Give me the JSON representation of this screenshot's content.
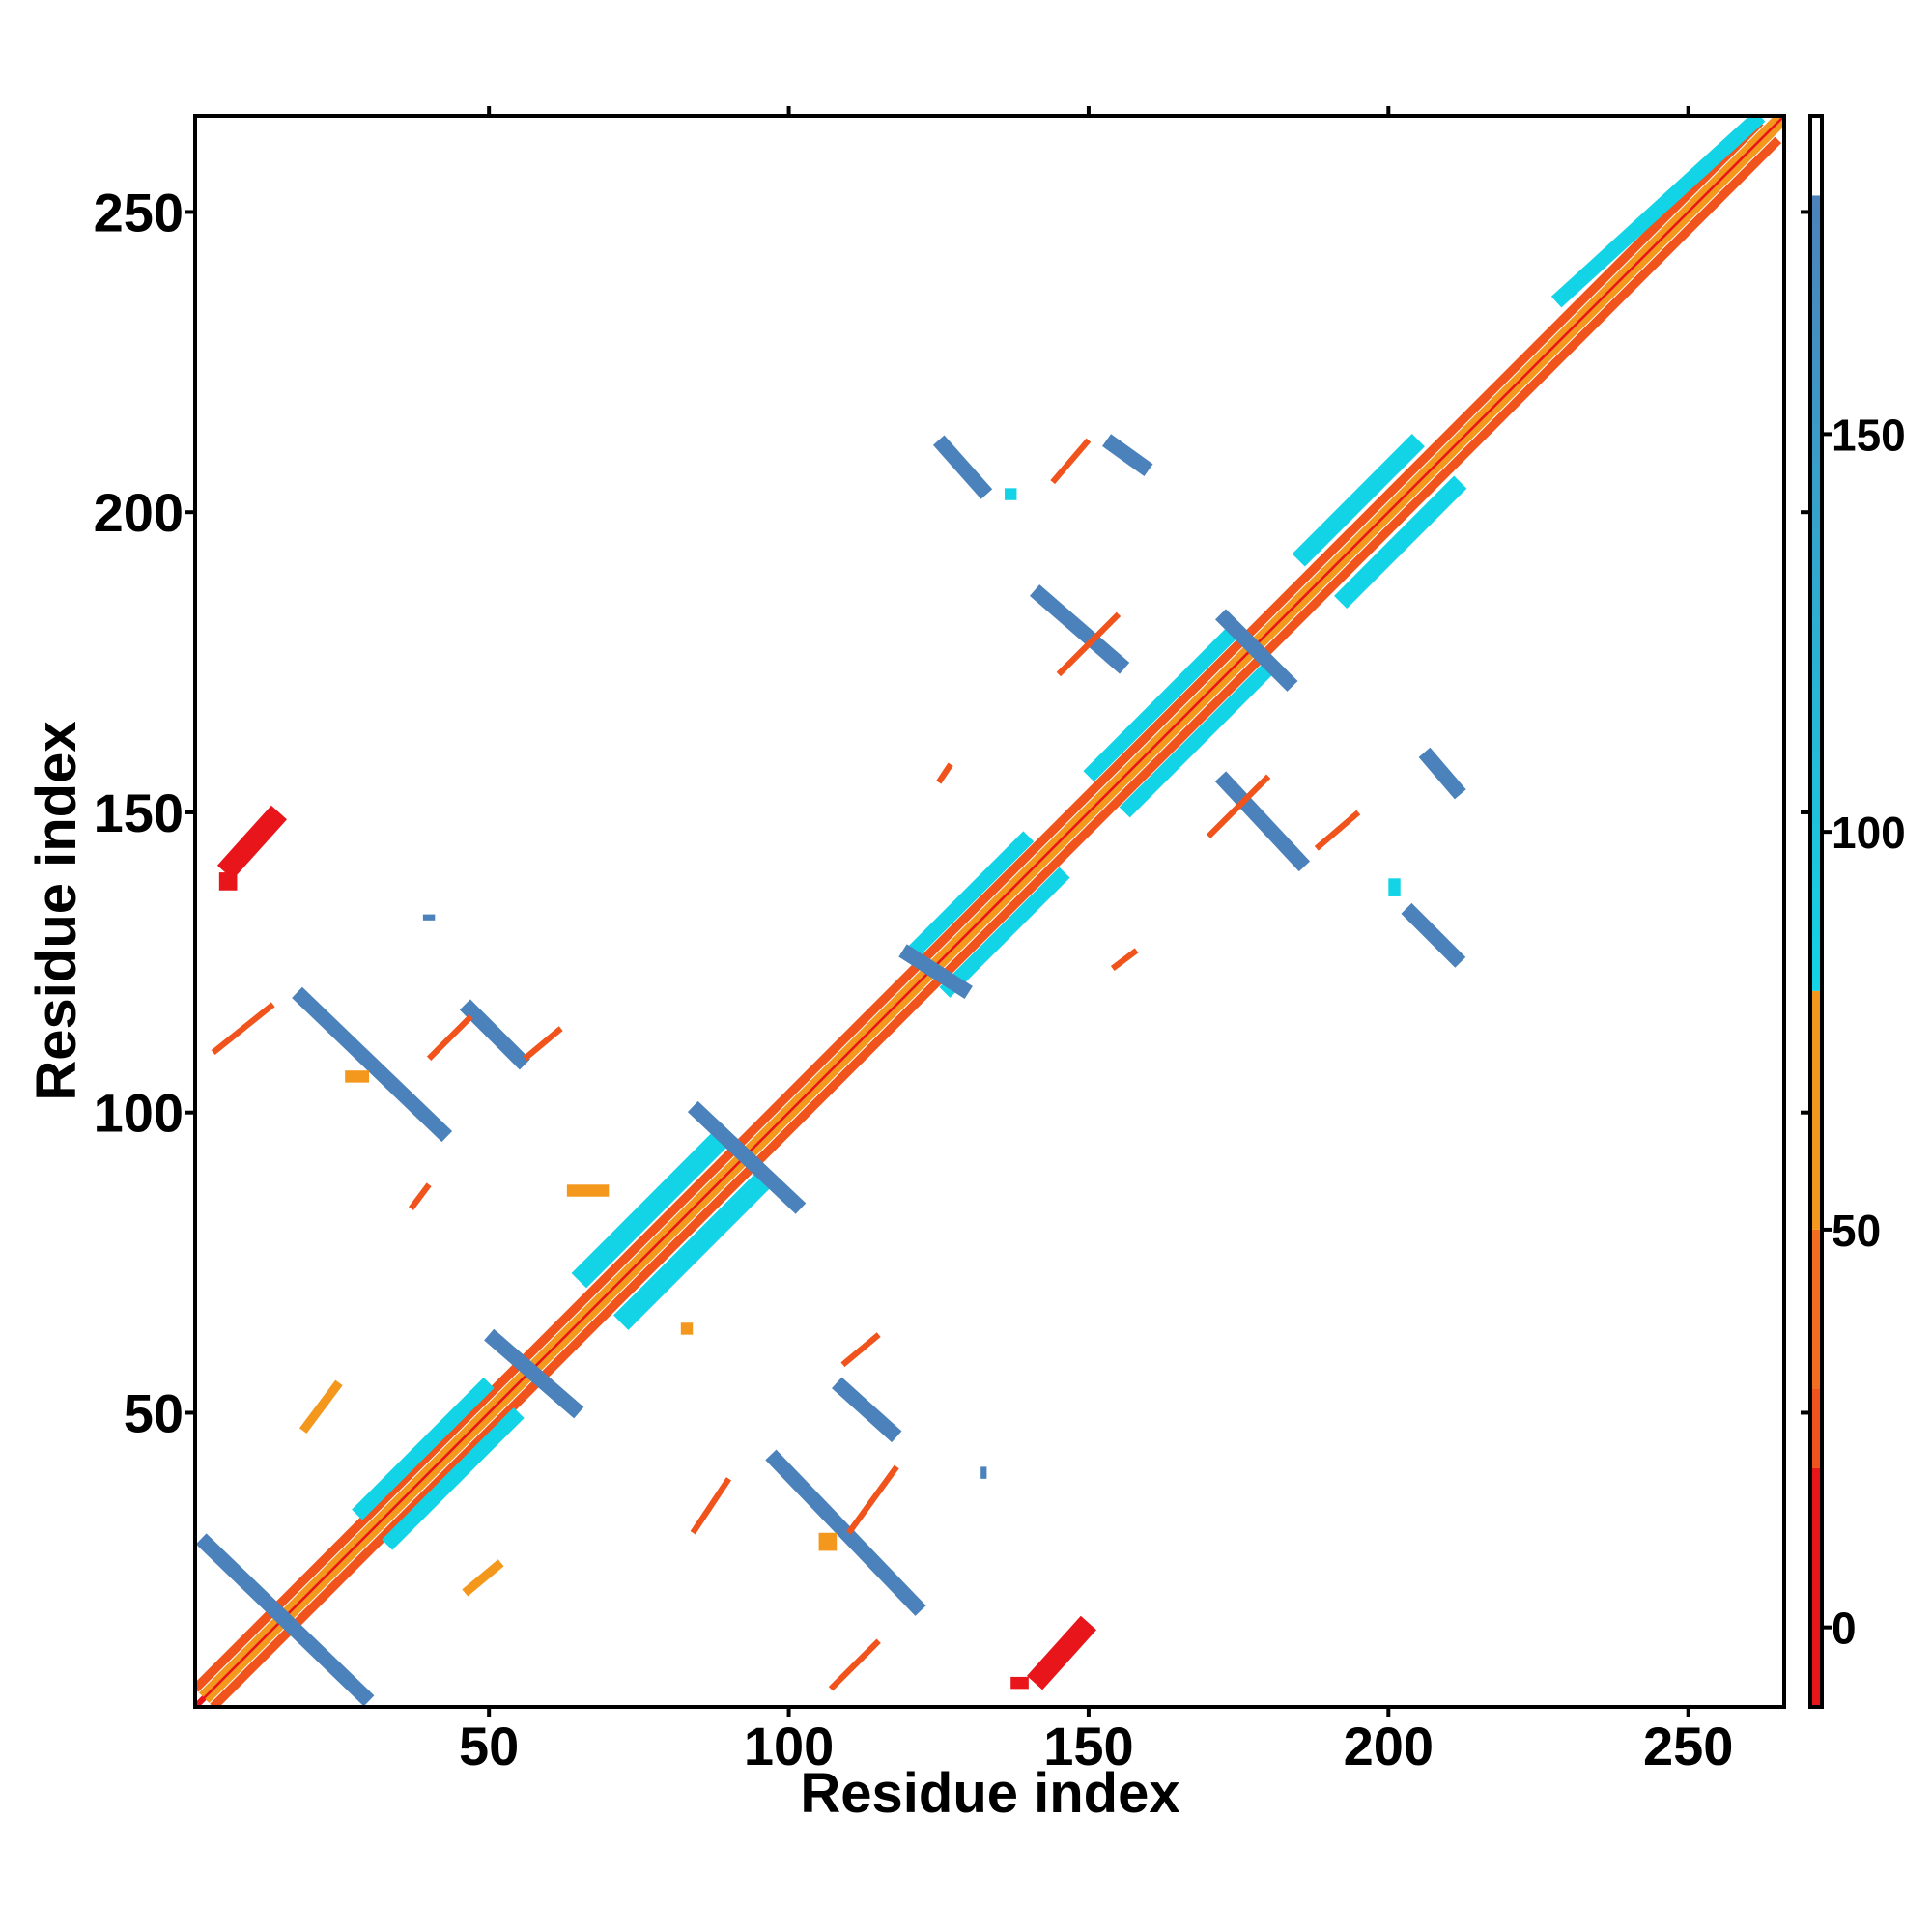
{
  "chart_data": {
    "type": "heatmap",
    "title": "",
    "xlabel": "Residue index",
    "ylabel": "Residue index",
    "xlim": [
      1,
      266
    ],
    "ylim": [
      1,
      266
    ],
    "x_ticks": [
      50,
      100,
      150,
      200,
      250
    ],
    "y_ticks": [
      50,
      100,
      150,
      200,
      250
    ],
    "grid": false,
    "legend": "colorbar-right",
    "colorbar": {
      "range": [
        -10,
        190
      ],
      "ticks": [
        0,
        50,
        100,
        150
      ],
      "bands": [
        {
          "from": -10,
          "to": 20,
          "color": "#e8151a"
        },
        {
          "from": 20,
          "to": 30,
          "color": "#f0531b"
        },
        {
          "from": 30,
          "to": 50,
          "color": "#f26d1f"
        },
        {
          "from": 50,
          "to": 80,
          "color": "#f3971d"
        },
        {
          "from": 80,
          "to": 180,
          "color": "#12d4e6"
        },
        {
          "from": 180,
          "to": 190,
          "color": "#ffffff"
        }
      ],
      "gradient_top_color": "#4c82bb"
    },
    "palette": {
      "red": "#e8151a",
      "red_orange": "#f0531b",
      "orange": "#f3971d",
      "cyan": "#12d4e6",
      "steel_blue": "#4c82bb"
    },
    "segments": [
      {
        "from": [
          1,
          1
        ],
        "to": [
          266,
          266
        ],
        "width": 1,
        "color": "#e8151a"
      },
      {
        "from": [
          2,
          3
        ],
        "to": [
          265,
          266
        ],
        "width": 1,
        "color": "#f3971d"
      },
      {
        "from": [
          3,
          2
        ],
        "to": [
          266,
          265
        ],
        "width": 1,
        "color": "#f3971d"
      },
      {
        "from": [
          1,
          4
        ],
        "to": [
          262,
          265
        ],
        "width": 1.5,
        "color": "#f0531b"
      },
      {
        "from": [
          4,
          1
        ],
        "to": [
          265,
          262
        ],
        "width": 1.5,
        "color": "#f0531b"
      },
      {
        "from": [
          28,
          33
        ],
        "to": [
          50,
          55
        ],
        "width": 2.5,
        "color": "#12d4e6"
      },
      {
        "from": [
          33,
          28
        ],
        "to": [
          55,
          50
        ],
        "width": 2.5,
        "color": "#12d4e6"
      },
      {
        "from": [
          65,
          72
        ],
        "to": [
          90,
          97
        ],
        "width": 3.5,
        "color": "#12d4e6"
      },
      {
        "from": [
          72,
          65
        ],
        "to": [
          97,
          90
        ],
        "width": 3.5,
        "color": "#12d4e6"
      },
      {
        "from": [
          120,
          126
        ],
        "to": [
          140,
          146
        ],
        "width": 2.5,
        "color": "#12d4e6"
      },
      {
        "from": [
          126,
          120
        ],
        "to": [
          146,
          140
        ],
        "width": 2.5,
        "color": "#12d4e6"
      },
      {
        "from": [
          150,
          156
        ],
        "to": [
          175,
          181
        ],
        "width": 2.5,
        "color": "#12d4e6"
      },
      {
        "from": [
          156,
          150
        ],
        "to": [
          181,
          175
        ],
        "width": 2.5,
        "color": "#12d4e6"
      },
      {
        "from": [
          185,
          192
        ],
        "to": [
          205,
          212
        ],
        "width": 3,
        "color": "#12d4e6"
      },
      {
        "from": [
          192,
          185
        ],
        "to": [
          212,
          205
        ],
        "width": 3,
        "color": "#12d4e6"
      },
      {
        "from": [
          228,
          235
        ],
        "to": [
          262,
          266
        ],
        "width": 2.5,
        "color": "#12d4e6"
      },
      {
        "from": [
          2,
          29
        ],
        "to": [
          30,
          2
        ],
        "width": 2.5,
        "color": "#4c82bb"
      },
      {
        "from": [
          50,
          63
        ],
        "to": [
          65,
          50
        ],
        "width": 2.5,
        "color": "#4c82bb"
      },
      {
        "from": [
          84,
          101
        ],
        "to": [
          102,
          84
        ],
        "width": 2.5,
        "color": "#4c82bb"
      },
      {
        "from": [
          119,
          127
        ],
        "to": [
          130,
          120
        ],
        "width": 2.5,
        "color": "#4c82bb"
      },
      {
        "from": [
          172,
          183
        ],
        "to": [
          184,
          171
        ],
        "width": 2.5,
        "color": "#4c82bb"
      },
      {
        "from": [
          97,
          43
        ],
        "to": [
          122,
          17
        ],
        "width": 2.5,
        "color": "#4c82bb"
      },
      {
        "from": [
          108,
          55
        ],
        "to": [
          118,
          46
        ],
        "width": 2.5,
        "color": "#4c82bb"
      },
      {
        "from": [
          18,
          120
        ],
        "to": [
          43,
          96
        ],
        "width": 2.5,
        "color": "#4c82bb"
      },
      {
        "from": [
          46,
          118
        ],
        "to": [
          56,
          108
        ],
        "width": 2.5,
        "color": "#4c82bb"
      },
      {
        "from": [
          125,
          212
        ],
        "to": [
          133,
          203
        ],
        "width": 2.5,
        "color": "#4c82bb"
      },
      {
        "from": [
          153,
          212
        ],
        "to": [
          160,
          207
        ],
        "width": 2.5,
        "color": "#4c82bb"
      },
      {
        "from": [
          141,
          187
        ],
        "to": [
          156,
          174
        ],
        "width": 2.5,
        "color": "#4c82bb"
      },
      {
        "from": [
          172,
          156
        ],
        "to": [
          186,
          141
        ],
        "width": 2.5,
        "color": "#4c82bb"
      },
      {
        "from": [
          206,
          160
        ],
        "to": [
          212,
          153
        ],
        "width": 2.5,
        "color": "#4c82bb"
      },
      {
        "from": [
          203,
          134
        ],
        "to": [
          212,
          125
        ],
        "width": 2.5,
        "color": "#4c82bb"
      },
      {
        "from": [
          6,
          140
        ],
        "to": [
          15,
          150
        ],
        "width": 3.5,
        "color": "#e8151a"
      },
      {
        "from": [
          141,
          5
        ],
        "to": [
          150,
          15
        ],
        "width": 3.5,
        "color": "#e8151a"
      },
      {
        "from": [
          4,
          110
        ],
        "to": [
          14,
          118
        ],
        "width": 1,
        "color": "#f0531b"
      },
      {
        "from": [
          37,
          84
        ],
        "to": [
          40,
          88
        ],
        "width": 1,
        "color": "#f0531b"
      },
      {
        "from": [
          40,
          109
        ],
        "to": [
          47,
          116
        ],
        "width": 1,
        "color": "#f0531b"
      },
      {
        "from": [
          56,
          109
        ],
        "to": [
          62,
          114
        ],
        "width": 1,
        "color": "#f0531b"
      },
      {
        "from": [
          19,
          47
        ],
        "to": [
          25,
          55
        ],
        "width": 1.5,
        "color": "#f3971d"
      },
      {
        "from": [
          46,
          20
        ],
        "to": [
          52,
          25
        ],
        "width": 1.5,
        "color": "#f3971d"
      },
      {
        "from": [
          84,
          30
        ],
        "to": [
          90,
          39
        ],
        "width": 1,
        "color": "#f0531b"
      },
      {
        "from": [
          107,
          4
        ],
        "to": [
          115,
          12
        ],
        "width": 1,
        "color": "#f0531b"
      },
      {
        "from": [
          109,
          58
        ],
        "to": [
          115,
          63
        ],
        "width": 1,
        "color": "#f0531b"
      },
      {
        "from": [
          110,
          30
        ],
        "to": [
          118,
          41
        ],
        "width": 1,
        "color": "#f0531b"
      },
      {
        "from": [
          144,
          205
        ],
        "to": [
          150,
          212
        ],
        "width": 1,
        "color": "#f0531b"
      },
      {
        "from": [
          145,
          173
        ],
        "to": [
          155,
          183
        ],
        "width": 1,
        "color": "#f0531b"
      },
      {
        "from": [
          170,
          146
        ],
        "to": [
          180,
          156
        ],
        "width": 1,
        "color": "#f0531b"
      },
      {
        "from": [
          188,
          144
        ],
        "to": [
          195,
          150
        ],
        "width": 1,
        "color": "#f0531b"
      },
      {
        "from": [
          154,
          124
        ],
        "to": [
          158,
          127
        ],
        "width": 1,
        "color": "#f0531b"
      },
      {
        "from": [
          125,
          155
        ],
        "to": [
          127,
          158
        ],
        "width": 1,
        "color": "#f0531b"
      }
    ],
    "blocks": [
      {
        "x": [
          63,
          70
        ],
        "y": [
          86,
          88
        ],
        "color": "#f3971d"
      },
      {
        "x": [
          82,
          84
        ],
        "y": [
          63,
          65
        ],
        "color": "#f3971d"
      },
      {
        "x": [
          105,
          108
        ],
        "y": [
          27,
          30
        ],
        "color": "#f3971d"
      },
      {
        "x": [
          26,
          30
        ],
        "y": [
          105,
          107
        ],
        "color": "#f3971d"
      },
      {
        "x": [
          136,
          138
        ],
        "y": [
          202,
          204
        ],
        "color": "#12d4e6"
      },
      {
        "x": [
          200,
          202
        ],
        "y": [
          136,
          139
        ],
        "color": "#12d4e6"
      },
      {
        "x": [
          137,
          140
        ],
        "y": [
          4,
          6
        ],
        "color": "#e8151a"
      },
      {
        "x": [
          5,
          8
        ],
        "y": [
          137,
          140
        ],
        "color": "#e8151a"
      },
      {
        "x": [
          39,
          41
        ],
        "y": [
          132,
          133
        ],
        "color": "#4c82bb"
      },
      {
        "x": [
          132,
          133
        ],
        "y": [
          39,
          41
        ],
        "color": "#4c82bb"
      }
    ]
  }
}
